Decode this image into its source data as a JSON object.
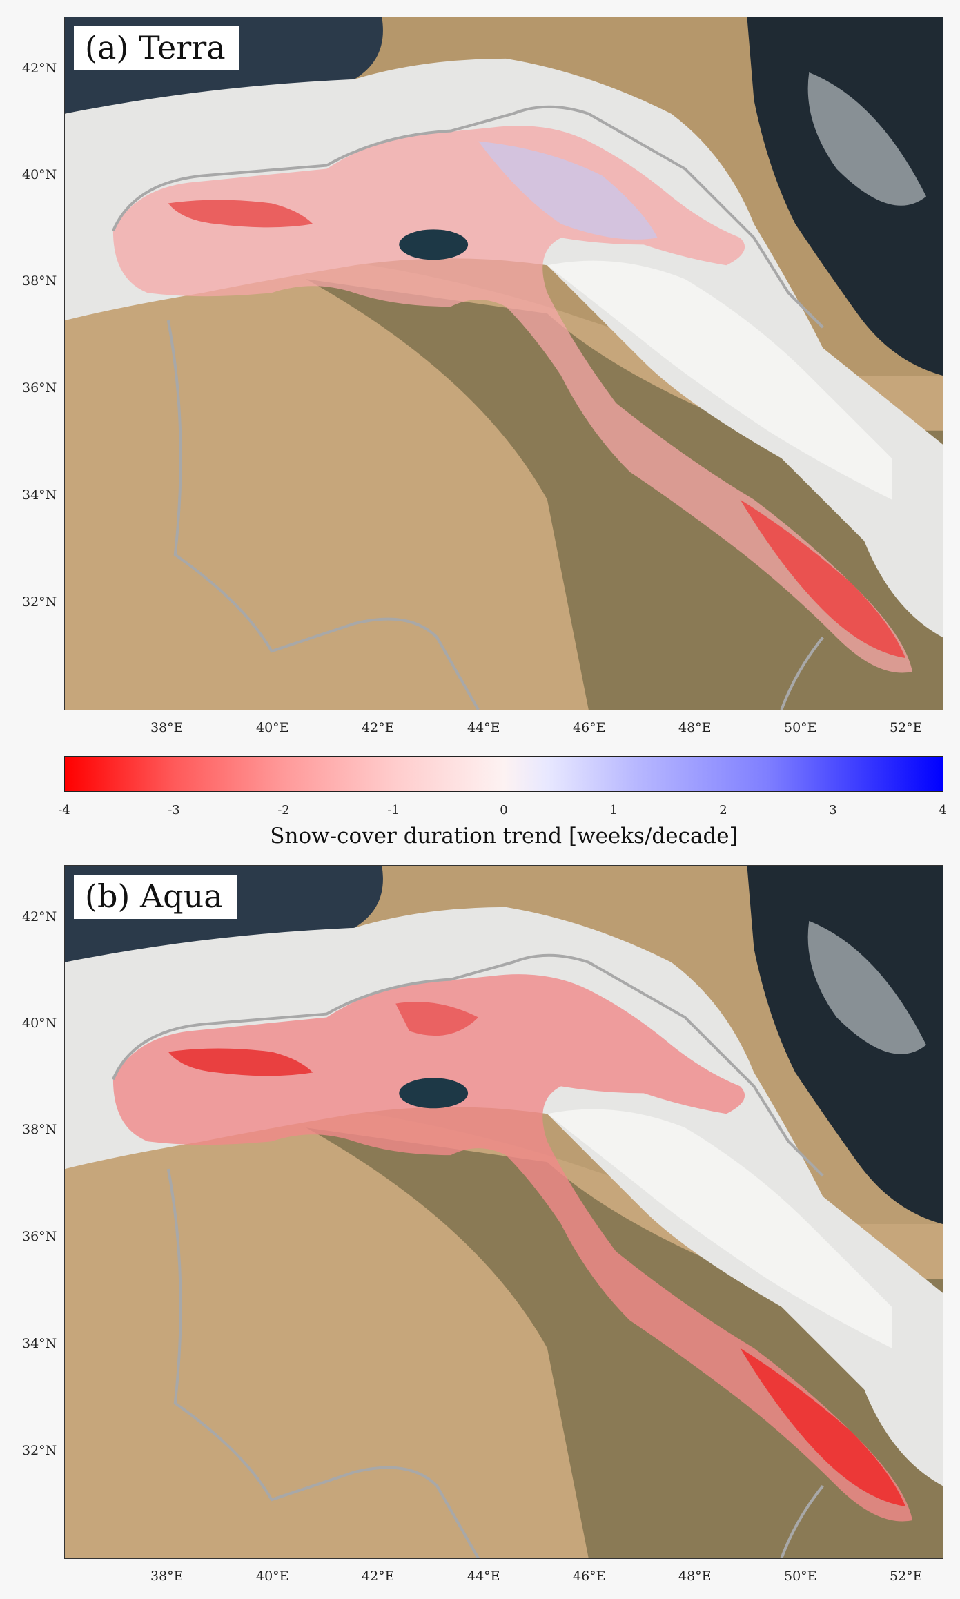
{
  "panels": [
    {
      "label": "(a) Terra"
    },
    {
      "label": "(b) Aqua"
    }
  ],
  "lat_ticks": [
    "42°N",
    "40°N",
    "38°N",
    "36°N",
    "34°N",
    "32°N"
  ],
  "lon_ticks": [
    "38°E",
    "40°E",
    "42°E",
    "44°E",
    "46°E",
    "48°E",
    "50°E",
    "52°E"
  ],
  "colorbar": {
    "title": "Snow-cover duration trend [weeks/decade]",
    "ticks": [
      "-4",
      "-3",
      "-2",
      "-1",
      "0",
      "1",
      "2",
      "3",
      "4"
    ],
    "range": [
      -4,
      4
    ],
    "colors": {
      "min": "#ff0000",
      "mid": "#ffffff",
      "max": "#0000ff"
    }
  }
}
